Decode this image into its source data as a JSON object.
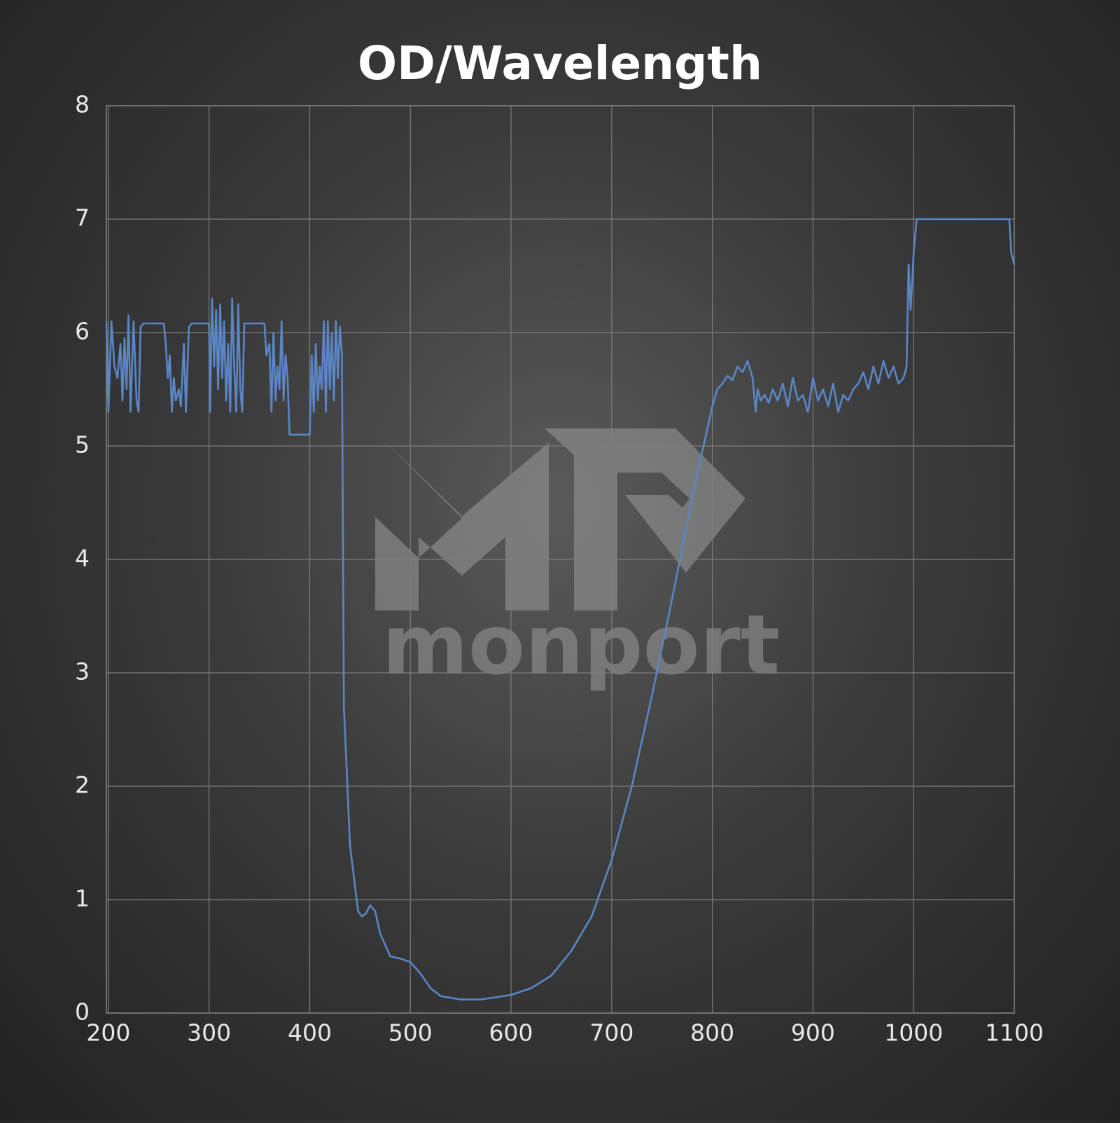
{
  "chart_data": {
    "type": "line",
    "title": "OD/Wavelength",
    "watermark": "monport",
    "x": [
      198,
      200,
      203,
      206,
      209,
      212,
      214,
      216,
      218,
      220,
      222,
      225,
      228,
      230,
      232,
      235,
      255,
      257,
      259,
      261,
      263,
      265,
      267,
      270,
      272,
      275,
      277,
      280,
      283,
      300,
      301,
      303,
      305,
      307,
      309,
      311,
      313,
      315,
      317,
      319,
      321,
      323,
      325,
      327,
      329,
      331,
      333,
      335,
      355,
      357,
      360,
      362,
      364,
      366,
      368,
      370,
      372,
      374,
      376,
      378,
      380,
      400,
      402,
      404,
      406,
      408,
      410,
      412,
      414,
      416,
      418,
      420,
      422,
      424,
      426,
      428,
      430,
      432,
      434,
      440,
      448,
      452,
      456,
      460,
      465,
      470,
      480,
      490,
      500,
      510,
      520,
      530,
      550,
      570,
      600,
      620,
      640,
      660,
      680,
      700,
      720,
      740,
      760,
      780,
      800,
      805,
      810,
      815,
      820,
      825,
      830,
      835,
      840,
      843,
      845,
      848,
      852,
      856,
      860,
      865,
      870,
      875,
      880,
      885,
      890,
      895,
      900,
      905,
      910,
      915,
      920,
      925,
      930,
      935,
      940,
      945,
      950,
      955,
      960,
      965,
      970,
      975,
      980,
      985,
      990,
      993,
      995,
      997,
      1000,
      1003,
      1095,
      1097,
      1100
    ],
    "values": [
      6.1,
      5.3,
      6.1,
      5.7,
      5.6,
      5.9,
      5.4,
      5.95,
      5.5,
      6.15,
      5.3,
      6.1,
      5.4,
      5.3,
      6.05,
      6.08,
      6.08,
      5.9,
      5.6,
      5.8,
      5.3,
      5.6,
      5.4,
      5.5,
      5.35,
      5.9,
      5.3,
      6.05,
      6.08,
      6.08,
      5.3,
      6.3,
      5.7,
      6.2,
      5.5,
      6.25,
      5.6,
      6.1,
      5.4,
      5.9,
      5.3,
      6.3,
      5.7,
      5.3,
      6.25,
      5.5,
      5.3,
      6.08,
      6.08,
      5.8,
      5.9,
      5.3,
      6.0,
      5.4,
      5.7,
      5.5,
      6.1,
      5.4,
      5.8,
      5.6,
      5.1,
      5.1,
      5.8,
      5.3,
      5.9,
      5.4,
      5.7,
      5.5,
      6.1,
      5.3,
      6.1,
      5.5,
      6.0,
      5.4,
      6.1,
      5.6,
      6.05,
      5.8,
      2.7,
      1.48,
      0.9,
      0.85,
      0.88,
      0.95,
      0.9,
      0.7,
      0.5,
      0.48,
      0.45,
      0.35,
      0.22,
      0.15,
      0.12,
      0.12,
      0.16,
      0.22,
      0.33,
      0.55,
      0.85,
      1.35,
      2.0,
      2.8,
      3.65,
      4.55,
      5.35,
      5.5,
      5.55,
      5.62,
      5.58,
      5.7,
      5.65,
      5.75,
      5.6,
      5.3,
      5.5,
      5.4,
      5.45,
      5.38,
      5.5,
      5.4,
      5.55,
      5.35,
      5.6,
      5.4,
      5.45,
      5.3,
      5.6,
      5.4,
      5.5,
      5.35,
      5.55,
      5.3,
      5.45,
      5.4,
      5.5,
      5.55,
      5.65,
      5.5,
      5.7,
      5.55,
      5.75,
      5.6,
      5.7,
      5.55,
      5.6,
      5.7,
      6.6,
      6.2,
      6.7,
      7.0,
      7.0,
      6.7,
      6.6
    ],
    "color": "#5a86c5",
    "xlim": [
      198,
      1100
    ],
    "xticks": [
      200,
      300,
      400,
      500,
      600,
      700,
      800,
      900,
      1000,
      1100
    ],
    "ylim": [
      0,
      8
    ],
    "yticks": [
      0,
      1,
      2,
      3,
      4,
      5,
      6,
      7,
      8
    ],
    "grid": true
  }
}
